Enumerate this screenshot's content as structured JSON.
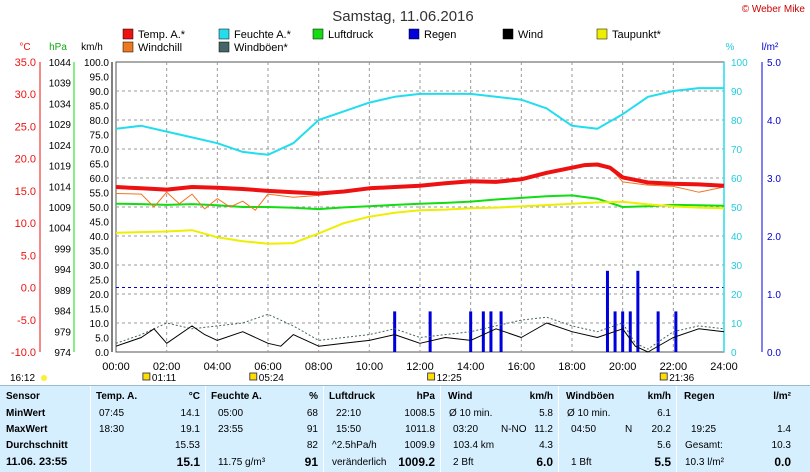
{
  "title": "Samstag, 11.06.2016",
  "credit": "© Weber Mike",
  "colors": {
    "temp": "#ee1111",
    "humidity": "#22ddee",
    "pressure": "#11dd11",
    "rain": "#0000dd",
    "wind": "#000000",
    "dewpoint": "#eeee00",
    "windchill": "#ee7722",
    "gust": "#446666",
    "grid": "#888888",
    "table_bg": "#d6efff"
  },
  "legend": [
    {
      "key": "temp",
      "label": "Temp. A.*"
    },
    {
      "key": "humidity",
      "label": "Feuchte A.*"
    },
    {
      "key": "pressure",
      "label": "Luftdruck"
    },
    {
      "key": "rain",
      "label": "Regen"
    },
    {
      "key": "wind",
      "label": "Wind"
    },
    {
      "key": "dewpoint",
      "label": "Taupunkt*"
    },
    {
      "key": "windchill",
      "label": "Windchill"
    },
    {
      "key": "gust",
      "label": "Windböen*"
    }
  ],
  "chart_data": {
    "type": "line",
    "axes": {
      "temp_c": {
        "unit": "°C",
        "range": [
          -10,
          35
        ],
        "ticks": [
          "35.0",
          "30.0",
          "25.0",
          "20.0",
          "15.0",
          "10.0",
          "5.0",
          "0.0",
          "-5.0",
          "-10.0"
        ]
      },
      "pressure_hpa": {
        "unit": "hPa",
        "range": [
          974,
          1044
        ],
        "ticks": [
          "1044",
          "1039",
          "1034",
          "1029",
          "1024",
          "1019",
          "1014",
          "1009",
          "1004",
          "999",
          "994",
          "989",
          "984",
          "979",
          "974"
        ]
      },
      "wind_kmh": {
        "unit": "km/h",
        "range": [
          0,
          100
        ],
        "ticks": [
          "100.0",
          "95.0",
          "90.0",
          "85.0",
          "80.0",
          "75.0",
          "70.0",
          "65.0",
          "60.0",
          "55.0",
          "50.0",
          "45.0",
          "40.0",
          "35.0",
          "30.0",
          "25.0",
          "20.0",
          "15.0",
          "10.0",
          "5.0",
          "0.0"
        ]
      },
      "humidity_pct": {
        "unit": "%",
        "range": [
          0,
          100
        ],
        "ticks": [
          "100",
          "90",
          "80",
          "70",
          "60",
          "50",
          "40",
          "30",
          "20",
          "10",
          "0"
        ]
      },
      "rain_lm2": {
        "unit": "l/m²",
        "range": [
          0,
          5
        ],
        "ticks": [
          "5.0",
          "4.0",
          "3.0",
          "2.0",
          "1.0",
          "0.0"
        ]
      },
      "x": {
        "range_hours": [
          0,
          24
        ],
        "ticks": [
          "00:00",
          "02:00",
          "04:00",
          "06:00",
          "08:00",
          "10:00",
          "12:00",
          "14:00",
          "16:00",
          "18:00",
          "20:00",
          "22:00",
          "24:00"
        ]
      }
    },
    "markers": [
      {
        "label": "16:12",
        "hour": 0
      },
      {
        "label": "01:11",
        "hour": 1.18
      },
      {
        "label": "05:24",
        "hour": 5.4
      },
      {
        "label": "12:25",
        "hour": 12.42
      },
      {
        "label": "21:36",
        "hour": 21.6
      }
    ],
    "series": [
      {
        "key": "temp",
        "axis": "temp_c",
        "x": [
          0,
          1,
          2,
          3,
          4,
          5,
          6,
          7,
          8,
          9,
          10,
          11,
          12,
          13,
          14,
          15,
          16,
          17,
          18,
          18.5,
          19,
          19.5,
          20,
          21,
          22,
          23,
          24
        ],
        "y": [
          15.6,
          15.4,
          15.2,
          15.6,
          15.5,
          15.3,
          15.0,
          14.8,
          14.6,
          14.9,
          15.4,
          15.6,
          15.8,
          16.2,
          16.5,
          16.4,
          16.8,
          17.8,
          18.6,
          19.0,
          19.1,
          18.6,
          17.1,
          16.3,
          16.1,
          16.0,
          15.8
        ]
      },
      {
        "key": "windchill",
        "axis": "temp_c",
        "x": [
          0,
          1,
          1.5,
          2,
          2.5,
          3,
          3.5,
          4,
          4.5,
          5,
          5.5,
          6,
          7,
          8,
          9,
          10,
          11,
          12,
          13,
          14,
          15,
          16,
          17,
          18,
          19,
          19.5,
          20,
          21,
          22,
          23,
          24
        ],
        "y": [
          14.6,
          14.5,
          12.5,
          14.8,
          13.0,
          14.5,
          12.2,
          13.8,
          12.5,
          13.4,
          12.0,
          14.5,
          14.0,
          14.3,
          14.8,
          15.2,
          15.6,
          15.8,
          16.2,
          16.5,
          16.4,
          16.8,
          17.8,
          18.6,
          19.0,
          18.6,
          16.4,
          15.9,
          15.7,
          14.8,
          15.6
        ]
      },
      {
        "key": "dewpoint",
        "axis": "temp_c",
        "x": [
          0,
          1,
          2,
          3,
          4,
          5,
          6,
          7,
          8,
          9,
          10,
          11,
          12,
          13,
          14,
          15,
          16,
          17,
          18,
          19,
          20,
          21,
          22,
          23,
          24
        ],
        "y": [
          8.5,
          8.6,
          8.7,
          8.9,
          7.8,
          7.2,
          6.8,
          6.9,
          8.4,
          10.0,
          11.0,
          11.6,
          12.0,
          12.1,
          12.3,
          12.4,
          12.6,
          12.8,
          13.0,
          13.2,
          13.3,
          12.9,
          12.6,
          12.4,
          12.3
        ]
      },
      {
        "key": "pressure",
        "axis": "pressure_hpa",
        "x": [
          0,
          1,
          2,
          3,
          4,
          5,
          6,
          7,
          8,
          9,
          10,
          11,
          12,
          13,
          14,
          15,
          16,
          17,
          18,
          19,
          20,
          21,
          22,
          23,
          24
        ],
        "y": [
          1009.8,
          1009.7,
          1009.5,
          1009.7,
          1009.4,
          1009.0,
          1009.0,
          1008.8,
          1008.5,
          1008.9,
          1009.2,
          1009.5,
          1009.8,
          1010.0,
          1010.3,
          1010.8,
          1011.2,
          1011.6,
          1011.8,
          1011.0,
          1009.0,
          1009.2,
          1009.5,
          1009.4,
          1009.3
        ]
      },
      {
        "key": "humidity",
        "axis": "humidity_pct",
        "x": [
          0,
          1,
          2,
          3,
          4,
          5,
          6,
          7,
          8,
          9,
          10,
          11,
          12,
          13,
          14,
          15,
          16,
          17,
          18,
          19,
          20,
          21,
          22,
          23,
          24
        ],
        "y": [
          77,
          78,
          76,
          74,
          72,
          69,
          68,
          72,
          80,
          83,
          86,
          88,
          89,
          89,
          89,
          88,
          87,
          84,
          78,
          77,
          82,
          88,
          90,
          91,
          91
        ]
      },
      {
        "key": "wind",
        "axis": "wind_kmh",
        "x": [
          0,
          1,
          1.5,
          2,
          3,
          3.5,
          4,
          5,
          6,
          6.5,
          7,
          8,
          9,
          10,
          11,
          12,
          13,
          14,
          15,
          16,
          17,
          18,
          19,
          20,
          20.5,
          21,
          22,
          23,
          24
        ],
        "y": [
          2,
          5,
          8,
          3,
          9,
          6,
          4,
          7,
          3,
          2,
          6,
          2,
          3,
          4,
          6,
          3,
          5,
          4,
          8,
          5,
          10,
          7,
          5,
          8,
          2,
          0,
          5,
          8,
          7
        ]
      },
      {
        "key": "gust",
        "axis": "wind_kmh",
        "x": [
          0,
          1,
          2,
          3,
          4,
          5,
          6,
          7,
          8,
          9,
          10,
          11,
          12,
          13,
          14,
          15,
          16,
          17,
          18,
          19,
          20,
          20.5,
          21,
          22,
          23,
          24
        ],
        "y": [
          3,
          6,
          10,
          8,
          9,
          10,
          13,
          9,
          4,
          5,
          6,
          8,
          5,
          6,
          7,
          9,
          11,
          12,
          9,
          7,
          10,
          3,
          1,
          7,
          9,
          8
        ]
      }
    ],
    "rain_bars": {
      "axis": "rain_lm2",
      "x": [
        11.0,
        12.4,
        14.0,
        14.5,
        14.8,
        15.2,
        19.4,
        19.7,
        20.0,
        20.3,
        20.6,
        21.4,
        22.1
      ],
      "y": [
        0.7,
        0.7,
        0.7,
        0.7,
        0.7,
        0.7,
        1.4,
        0.7,
        0.7,
        0.7,
        1.4,
        0.7,
        0.7
      ]
    }
  },
  "table": {
    "sensor": {
      "header": "Sensor",
      "rows": [
        "MinWert",
        "MaxWert",
        "Durchschnitt",
        "11.06. 23:55"
      ]
    },
    "temp": {
      "header": "Temp. A.",
      "unit": "°C",
      "rows": [
        [
          "07:45",
          "14.1"
        ],
        [
          "18:30",
          "19.1"
        ],
        [
          "",
          "15.53"
        ],
        [
          "",
          "15.1"
        ]
      ]
    },
    "humidity": {
      "header": "Feuchte A.",
      "unit": "%",
      "rows": [
        [
          "05:00",
          "68"
        ],
        [
          "23:55",
          "91"
        ],
        [
          "",
          "82"
        ],
        [
          "11.75 g/m³",
          "91"
        ]
      ]
    },
    "pressure": {
      "header": "Luftdruck",
      "unit": "hPa",
      "rows": [
        [
          "22:10",
          "1008.5"
        ],
        [
          "15:50",
          "1011.8"
        ],
        [
          "^2.5hPa/h",
          "1009.9"
        ],
        [
          "veränderlich",
          "1009.2"
        ]
      ]
    },
    "wind": {
      "header": "Wind",
      "unit": "km/h",
      "rows": [
        [
          "Ø 10 min.",
          "",
          "5.8"
        ],
        [
          "03:20",
          "N-NO",
          "11.2"
        ],
        [
          "103.4 km",
          "",
          "4.3"
        ],
        [
          "2 Bft",
          "",
          "6.0"
        ]
      ]
    },
    "gust": {
      "header": "Windböen",
      "unit": "km/h",
      "rows": [
        [
          "Ø 10 min.",
          "",
          "6.1"
        ],
        [
          "04:50",
          "N",
          "20.2"
        ],
        [
          "",
          "",
          "5.6"
        ],
        [
          "1 Bft",
          "",
          "5.5"
        ]
      ]
    },
    "rain": {
      "header": "Regen",
      "unit": "l/m²",
      "rows": [
        [
          "",
          ""
        ],
        [
          "19:25",
          "1.4"
        ],
        [
          "Gesamt:",
          "10.3"
        ],
        [
          "10.3 l/m²",
          "0.0"
        ]
      ]
    }
  }
}
